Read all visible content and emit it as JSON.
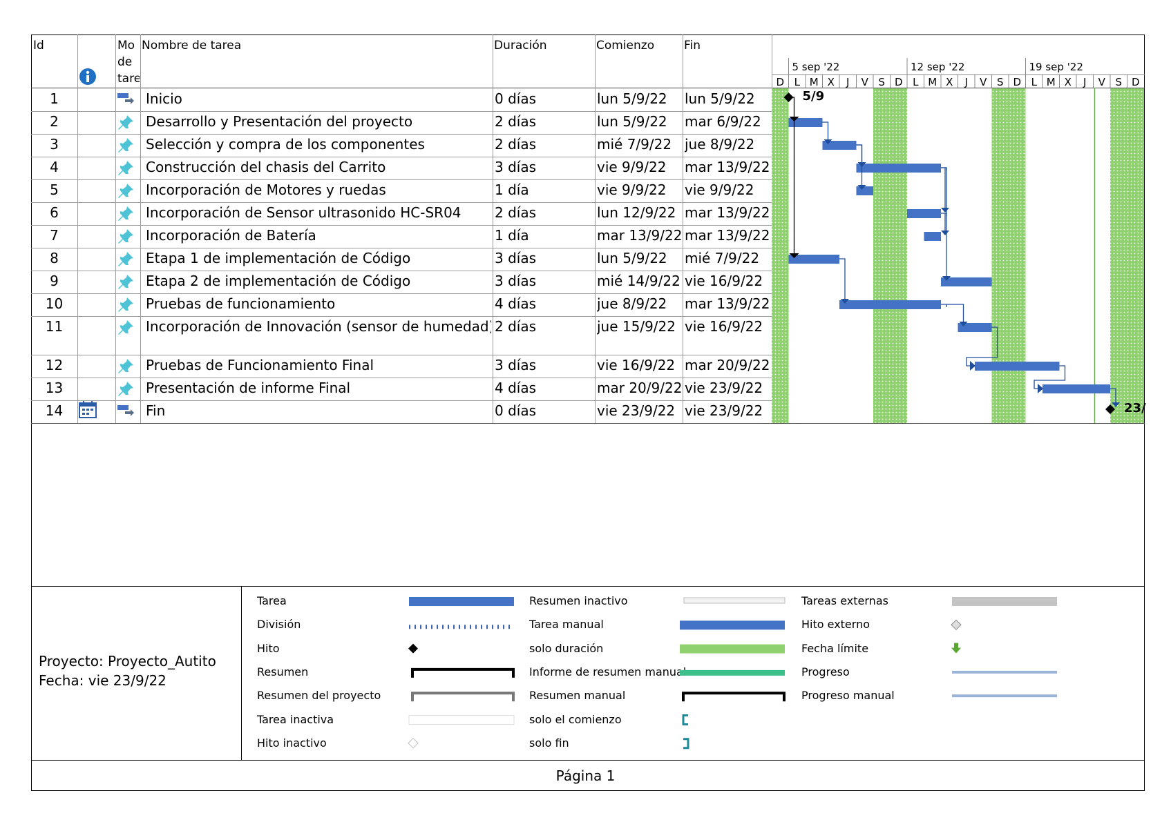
{
  "table": {
    "headers": {
      "id": "Id",
      "mode": [
        "Mo",
        "de",
        "tare"
      ],
      "name": "Nombre de tarea",
      "duration": "Duración",
      "start": "Comienzo",
      "finish": "Fin"
    },
    "rows": [
      {
        "id": "1",
        "name": "Inicio",
        "duration": "0 días",
        "start": "lun 5/9/22",
        "finish": "lun 5/9/22"
      },
      {
        "id": "2",
        "name": "Desarrollo y Presentación del proyecto",
        "duration": "2 días",
        "start": "lun 5/9/22",
        "finish": "mar 6/9/22"
      },
      {
        "id": "3",
        "name": "Selección y compra de los componentes",
        "duration": "2 días",
        "start": "mié 7/9/22",
        "finish": "jue 8/9/22"
      },
      {
        "id": "4",
        "name": "Construcción del chasis del Carrito",
        "duration": "3 días",
        "start": "vie 9/9/22",
        "finish": "mar 13/9/22"
      },
      {
        "id": "5",
        "name": "Incorporación de Motores y ruedas",
        "duration": "1 día",
        "start": "vie 9/9/22",
        "finish": "vie 9/9/22"
      },
      {
        "id": "6",
        "name": "Incorporación de Sensor ultrasonido HC-SR04",
        "duration": "2 días",
        "start": "lun 12/9/22",
        "finish": "mar 13/9/22"
      },
      {
        "id": "7",
        "name": "Incorporación de Batería",
        "duration": "1 día",
        "start": "mar 13/9/22",
        "finish": "mar 13/9/22"
      },
      {
        "id": "8",
        "name": "Etapa 1 de implementación de Código",
        "duration": "3 días",
        "start": "lun 5/9/22",
        "finish": "mié 7/9/22"
      },
      {
        "id": "9",
        "name": "Etapa 2 de implementación de Código",
        "duration": "3 días",
        "start": "mié 14/9/22",
        "finish": "vie 16/9/22"
      },
      {
        "id": "10",
        "name": "Pruebas de funcionamiento",
        "duration": "4 días",
        "start": "jue 8/9/22",
        "finish": "mar 13/9/22"
      },
      {
        "id": "11",
        "name": "Incorporación de Innovación (sensor de humedad)",
        "duration": "2 días",
        "start": "jue 15/9/22",
        "finish": "vie 16/9/22"
      },
      {
        "id": "12",
        "name": "Pruebas de Funcionamiento Final",
        "duration": "3 días",
        "start": "vie 16/9/22",
        "finish": "mar 20/9/22"
      },
      {
        "id": "13",
        "name": "Presentación de informe Final",
        "duration": "4 días",
        "start": "mar 20/9/22",
        "finish": "vie 23/9/22"
      },
      {
        "id": "14",
        "name": "Fin",
        "duration": "0 días",
        "start": "vie 23/9/22",
        "finish": "vie 23/9/22"
      }
    ]
  },
  "timescale": {
    "weeks": [
      "5 sep '22",
      "12 sep '22",
      "19 sep '22"
    ],
    "days": [
      "D",
      "L",
      "M",
      "X",
      "J",
      "V",
      "S",
      "D",
      "L",
      "M",
      "X",
      "J",
      "V",
      "S",
      "D",
      "L",
      "M",
      "X",
      "J",
      "V",
      "S",
      "D"
    ],
    "milestone_labels": {
      "start": "5/9",
      "end": "23/"
    }
  },
  "gantt": {
    "first_day": "2022-09-04",
    "tasks": [
      {
        "row": 1,
        "start": 1,
        "end": 1,
        "milestone": true
      },
      {
        "row": 2,
        "start": 1,
        "end": 3
      },
      {
        "row": 3,
        "start": 3,
        "end": 5
      },
      {
        "row": 4,
        "start": 5,
        "end": 10
      },
      {
        "row": 5,
        "start": 5,
        "end": 6
      },
      {
        "row": 6,
        "start": 8,
        "end": 10
      },
      {
        "row": 7,
        "start": 9,
        "end": 10
      },
      {
        "row": 8,
        "start": 1,
        "end": 4
      },
      {
        "row": 9,
        "start": 10,
        "end": 13
      },
      {
        "row": 10,
        "start": 4,
        "end": 10
      },
      {
        "row": 11,
        "start": 11,
        "end": 13
      },
      {
        "row": 12,
        "start": 12,
        "end": 17
      },
      {
        "row": 13,
        "start": 16,
        "end": 20
      },
      {
        "row": 14,
        "start": 20,
        "end": 20,
        "milestone": true
      }
    ],
    "colors": {
      "task": "#4472c4",
      "nonworking": "#8fd16f",
      "link": "#1f4e9c",
      "milestone": "#000000"
    }
  },
  "legend": {
    "col1": [
      "Tarea",
      "División",
      "Hito",
      "Resumen",
      "Resumen del proyecto",
      "Tarea inactiva",
      "Hito inactivo"
    ],
    "col2": [
      "Resumen inactivo",
      "Tarea manual",
      "solo duración",
      "Informe de resumen manual",
      "Resumen manual",
      "solo el comienzo",
      "solo fin"
    ],
    "col3": [
      "Tareas externas",
      "Hito externo",
      "Fecha límite",
      "Progreso",
      "Progreso manual"
    ]
  },
  "project": {
    "name_line": "Proyecto: Proyecto_Autito",
    "date_line": "Fecha: vie 23/9/22"
  },
  "footer": {
    "page": "Página 1"
  }
}
